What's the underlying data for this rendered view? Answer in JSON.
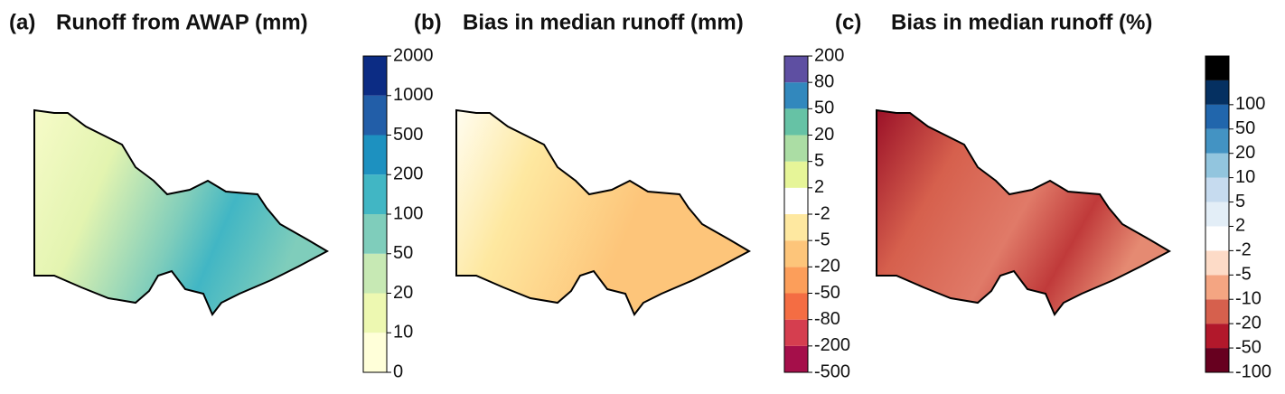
{
  "panels": [
    {
      "label": "(a)",
      "title": "Runoff from AWAP (mm)",
      "colorbar": {
        "labels": [
          0,
          10,
          20,
          50,
          100,
          200,
          500,
          1000,
          2000
        ],
        "colors": [
          "#ffffd9",
          "#edf8b1",
          "#c7e9b4",
          "#7fcdbb",
          "#41b6c4",
          "#1d91c0",
          "#225ea8",
          "#0c2c84"
        ]
      }
    },
    {
      "label": "(b)",
      "title": "Bias in median runoff (mm)",
      "colorbar": {
        "labels": [
          -500,
          -200,
          -80,
          -50,
          -20,
          -5,
          -2,
          2,
          5,
          20,
          50,
          80,
          200
        ],
        "colors": [
          "#a50f4a",
          "#d53e4f",
          "#f46d43",
          "#fc9e5a",
          "#fdc57a",
          "#fee8a0",
          "#ffffff",
          "#e6f598",
          "#abdda4",
          "#66c2a5",
          "#3288bd",
          "#5e4fa2"
        ]
      }
    },
    {
      "label": "(c)",
      "title": "Bias in median runoff (%)",
      "colorbar": {
        "labels": [
          -100,
          -50,
          -20,
          -10,
          -5,
          -2,
          2,
          5,
          10,
          20,
          50,
          100
        ],
        "colors": [
          "#67001f",
          "#b2182b",
          "#d6604d",
          "#f4a582",
          "#fddbc7",
          "#ffffff",
          "#e3eef7",
          "#c6dbef",
          "#92c5de",
          "#4393c3",
          "#2166ac",
          "#053061",
          "#000000"
        ]
      }
    }
  ]
}
